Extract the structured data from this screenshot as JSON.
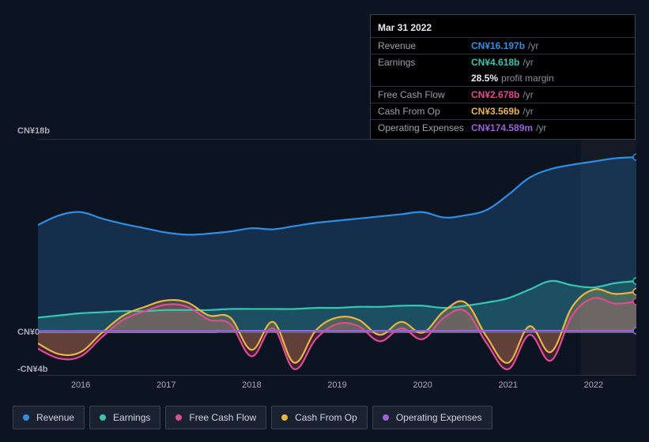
{
  "tooltip": {
    "title": "Mar 31 2022",
    "rows": [
      {
        "label": "Revenue",
        "value": "CN¥16.197b",
        "suffix": "/yr",
        "color_key": "revenue"
      },
      {
        "label": "Earnings",
        "value": "CN¥4.618b",
        "suffix": "/yr",
        "color_key": "earnings",
        "sub": {
          "value": "28.5%",
          "suffix": "profit margin"
        }
      },
      {
        "label": "Free Cash Flow",
        "value": "CN¥2.678b",
        "suffix": "/yr",
        "color_key": "fcf"
      },
      {
        "label": "Cash From Op",
        "value": "CN¥3.569b",
        "suffix": "/yr",
        "color_key": "cfo"
      },
      {
        "label": "Operating Expenses",
        "value": "CN¥174.589m",
        "suffix": "/yr",
        "color_key": "opex"
      }
    ]
  },
  "chart": {
    "type": "area",
    "x_start_year": 2015.5,
    "x_end_year": 2022.5,
    "x_ticks": [
      2016,
      2017,
      2018,
      2019,
      2020,
      2021,
      2022
    ],
    "y_min": -4,
    "y_max": 18,
    "y_ticks": [
      {
        "v": 18,
        "label": "CN¥18b"
      },
      {
        "v": 0,
        "label": "CN¥0"
      },
      {
        "v": -4,
        "label": "-CN¥4b"
      }
    ],
    "hover_x": 2022.25,
    "hover_band_start": 2021.85,
    "colors": {
      "revenue": "#2f8ee3",
      "earnings": "#36c7b0",
      "fcf": "#e14b8f",
      "cfo": "#eab544",
      "opex": "#9a62db",
      "background": "#0d1421",
      "grid": "#2b3242"
    },
    "series": {
      "revenue": {
        "label": "Revenue",
        "color_key": "revenue",
        "end_dot": true,
        "points": [
          [
            2015.5,
            10.0
          ],
          [
            2015.75,
            10.9
          ],
          [
            2016.0,
            11.2
          ],
          [
            2016.25,
            10.6
          ],
          [
            2016.5,
            10.1
          ],
          [
            2016.75,
            9.7
          ],
          [
            2017.0,
            9.3
          ],
          [
            2017.25,
            9.1
          ],
          [
            2017.5,
            9.2
          ],
          [
            2017.75,
            9.4
          ],
          [
            2018.0,
            9.7
          ],
          [
            2018.25,
            9.6
          ],
          [
            2018.5,
            9.9
          ],
          [
            2018.75,
            10.2
          ],
          [
            2019.0,
            10.4
          ],
          [
            2019.25,
            10.6
          ],
          [
            2019.5,
            10.8
          ],
          [
            2019.75,
            11.0
          ],
          [
            2020.0,
            11.2
          ],
          [
            2020.25,
            10.7
          ],
          [
            2020.5,
            10.9
          ],
          [
            2020.75,
            11.4
          ],
          [
            2021.0,
            12.8
          ],
          [
            2021.25,
            14.4
          ],
          [
            2021.5,
            15.2
          ],
          [
            2021.75,
            15.6
          ],
          [
            2022.0,
            15.9
          ],
          [
            2022.25,
            16.2
          ],
          [
            2022.5,
            16.3
          ]
        ]
      },
      "earnings": {
        "label": "Earnings",
        "color_key": "earnings",
        "end_dot": true,
        "points": [
          [
            2015.5,
            1.4
          ],
          [
            2015.75,
            1.6
          ],
          [
            2016.0,
            1.8
          ],
          [
            2016.25,
            1.9
          ],
          [
            2016.5,
            2.0
          ],
          [
            2016.75,
            2.0
          ],
          [
            2017.0,
            2.1
          ],
          [
            2017.25,
            2.1
          ],
          [
            2017.5,
            2.1
          ],
          [
            2017.75,
            2.2
          ],
          [
            2018.0,
            2.2
          ],
          [
            2018.25,
            2.2
          ],
          [
            2018.5,
            2.2
          ],
          [
            2018.75,
            2.3
          ],
          [
            2019.0,
            2.3
          ],
          [
            2019.25,
            2.4
          ],
          [
            2019.5,
            2.4
          ],
          [
            2019.75,
            2.5
          ],
          [
            2020.0,
            2.5
          ],
          [
            2020.25,
            2.3
          ],
          [
            2020.5,
            2.5
          ],
          [
            2020.75,
            2.8
          ],
          [
            2021.0,
            3.2
          ],
          [
            2021.25,
            4.0
          ],
          [
            2021.5,
            4.8
          ],
          [
            2021.75,
            4.4
          ],
          [
            2022.0,
            4.2
          ],
          [
            2022.25,
            4.6
          ],
          [
            2022.5,
            4.8
          ]
        ]
      },
      "fcf": {
        "label": "Free Cash Flow",
        "color_key": "fcf",
        "end_dot": true,
        "points": [
          [
            2015.5,
            -1.5
          ],
          [
            2015.75,
            -2.4
          ],
          [
            2016.0,
            -2.2
          ],
          [
            2016.25,
            -0.4
          ],
          [
            2016.5,
            1.2
          ],
          [
            2016.75,
            2.0
          ],
          [
            2017.0,
            2.6
          ],
          [
            2017.25,
            2.4
          ],
          [
            2017.5,
            1.2
          ],
          [
            2017.75,
            0.8
          ],
          [
            2018.0,
            -2.2
          ],
          [
            2018.25,
            0.4
          ],
          [
            2018.5,
            -3.4
          ],
          [
            2018.75,
            -0.6
          ],
          [
            2019.0,
            0.8
          ],
          [
            2019.25,
            0.6
          ],
          [
            2019.5,
            -0.8
          ],
          [
            2019.75,
            0.4
          ],
          [
            2020.0,
            -0.6
          ],
          [
            2020.25,
            1.4
          ],
          [
            2020.5,
            2.0
          ],
          [
            2020.75,
            -1.0
          ],
          [
            2021.0,
            -3.4
          ],
          [
            2021.25,
            -0.2
          ],
          [
            2021.5,
            -2.6
          ],
          [
            2021.75,
            1.6
          ],
          [
            2022.0,
            3.2
          ],
          [
            2022.25,
            2.7
          ],
          [
            2022.5,
            2.9
          ]
        ]
      },
      "cfo": {
        "label": "Cash From Op",
        "color_key": "cfo",
        "end_dot": true,
        "points": [
          [
            2015.5,
            -1.0
          ],
          [
            2015.75,
            -2.0
          ],
          [
            2016.0,
            -1.8
          ],
          [
            2016.25,
            0.0
          ],
          [
            2016.5,
            1.6
          ],
          [
            2016.75,
            2.4
          ],
          [
            2017.0,
            3.0
          ],
          [
            2017.25,
            2.8
          ],
          [
            2017.5,
            1.6
          ],
          [
            2017.75,
            1.4
          ],
          [
            2018.0,
            -1.6
          ],
          [
            2018.25,
            1.0
          ],
          [
            2018.5,
            -2.8
          ],
          [
            2018.75,
            0.2
          ],
          [
            2019.0,
            1.4
          ],
          [
            2019.25,
            1.2
          ],
          [
            2019.5,
            -0.2
          ],
          [
            2019.75,
            1.0
          ],
          [
            2020.0,
            0.0
          ],
          [
            2020.25,
            2.0
          ],
          [
            2020.5,
            2.8
          ],
          [
            2020.75,
            -0.4
          ],
          [
            2021.0,
            -2.8
          ],
          [
            2021.25,
            0.6
          ],
          [
            2021.5,
            -1.8
          ],
          [
            2021.75,
            2.4
          ],
          [
            2022.0,
            4.0
          ],
          [
            2022.25,
            3.6
          ],
          [
            2022.5,
            3.8
          ]
        ]
      },
      "opex": {
        "label": "Operating Expenses",
        "color_key": "opex",
        "end_dot": true,
        "points": [
          [
            2015.5,
            0.15
          ],
          [
            2016.0,
            0.15
          ],
          [
            2016.5,
            0.16
          ],
          [
            2017.0,
            0.16
          ],
          [
            2017.5,
            0.16
          ],
          [
            2018.0,
            0.17
          ],
          [
            2018.5,
            0.17
          ],
          [
            2019.0,
            0.17
          ],
          [
            2019.5,
            0.17
          ],
          [
            2020.0,
            0.17
          ],
          [
            2020.5,
            0.18
          ],
          [
            2021.0,
            0.18
          ],
          [
            2021.5,
            0.18
          ],
          [
            2022.0,
            0.17
          ],
          [
            2022.5,
            0.17
          ]
        ]
      }
    },
    "legend_order": [
      "revenue",
      "earnings",
      "fcf",
      "cfo",
      "opex"
    ]
  }
}
